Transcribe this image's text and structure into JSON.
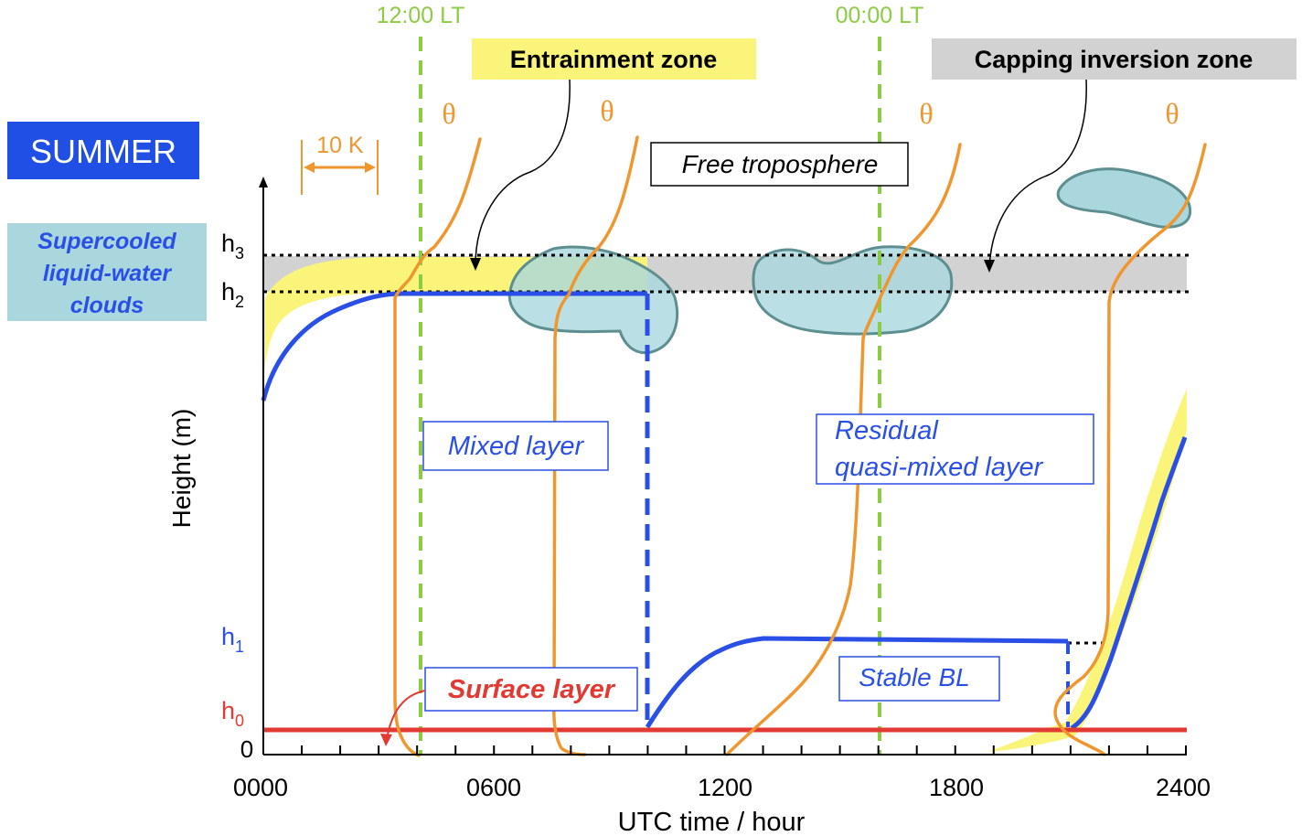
{
  "season_label": "SUMMER",
  "clouds_label": [
    "Supercooled",
    "liquid-water",
    "clouds"
  ],
  "scale_label": "10 K",
  "noon_label": "12:00 LT",
  "midnight_label": "00:00 LT",
  "entrainment_label": "Entrainment zone",
  "capping_label": "Capping inversion zone",
  "theta_symbol": "θ",
  "free_troposphere_label": "Free troposphere",
  "mixed_layer_label": "Mixed layer",
  "residual_label": [
    "Residual",
    "quasi-mixed layer"
  ],
  "stable_bl_label": "Stable BL",
  "surface_layer_label": "Surface layer",
  "y_axis": {
    "label": "Height (m)",
    "levels": [
      {
        "base": "h",
        "sub": "3"
      },
      {
        "base": "h",
        "sub": "2"
      },
      {
        "base": "h",
        "sub": "1"
      },
      {
        "base": "h",
        "sub": "0"
      }
    ],
    "zero": "0"
  },
  "x_axis": {
    "label": "UTC time / hour",
    "ticks": [
      "0000",
      "0600",
      "1200",
      "1800",
      "2400"
    ]
  },
  "colors": {
    "blue": "#2a4fe6",
    "orange": "#f0962e",
    "green": "#8ccc44",
    "red": "#e23a33",
    "yellow": "#fbf47a",
    "gray": "#d2d2d2",
    "cloud": "#a9d7dd",
    "season_bg": "#1f4fe4"
  }
}
